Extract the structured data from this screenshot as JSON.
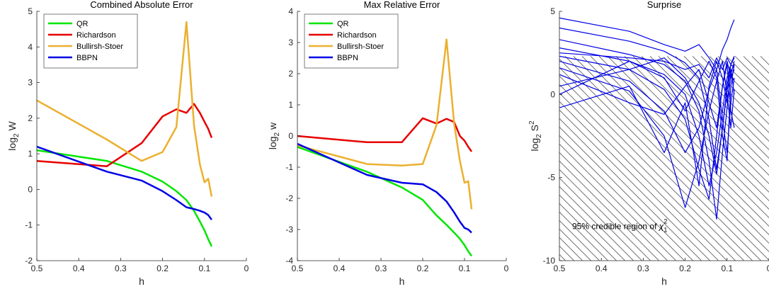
{
  "chart_data": [
    {
      "type": "line",
      "title": "Combined Absolute Error",
      "xlabel": "h",
      "ylabel": "log",
      "ylabel_sub": "2",
      "ylabel_tail": " W",
      "xlim": [
        0,
        0.5
      ],
      "ylim": [
        -2,
        5
      ],
      "x_reversed": true,
      "xticks": [
        0.5,
        0.4,
        0.3,
        0.2,
        0.1,
        0
      ],
      "xtick_labels": [
        "0.5",
        "0.4",
        "0.3",
        "0.2",
        "0.1",
        "0"
      ],
      "yticks": [
        -2,
        -1,
        0,
        1,
        2,
        3,
        4,
        5
      ],
      "ytick_labels": [
        "-2",
        "-1",
        "0",
        "1",
        "2",
        "3",
        "4",
        "5"
      ],
      "legend_position": "top-left",
      "series": [
        {
          "name": "QR",
          "color": "#00e600",
          "x": [
            0.5,
            0.333,
            0.25,
            0.2,
            0.167,
            0.143,
            0.125,
            0.111,
            0.1,
            0.091,
            0.083
          ],
          "y": [
            1.1,
            0.8,
            0.5,
            0.22,
            -0.05,
            -0.3,
            -0.6,
            -0.9,
            -1.15,
            -1.4,
            -1.6
          ]
        },
        {
          "name": "Richardson",
          "color": "#e60000",
          "x": [
            0.5,
            0.333,
            0.25,
            0.2,
            0.167,
            0.143,
            0.125,
            0.111,
            0.1,
            0.091,
            0.083
          ],
          "y": [
            0.8,
            0.65,
            1.3,
            2.05,
            2.25,
            2.15,
            2.4,
            2.15,
            1.9,
            1.7,
            1.45
          ]
        },
        {
          "name": "Bullirsh-Stoer",
          "color": "#ebb030",
          "x": [
            0.5,
            0.333,
            0.25,
            0.2,
            0.167,
            0.143,
            0.125,
            0.111,
            0.1,
            0.091,
            0.083
          ],
          "y": [
            2.5,
            1.4,
            0.8,
            1.05,
            1.75,
            4.7,
            1.8,
            0.7,
            0.2,
            0.3,
            -0.2
          ]
        },
        {
          "name": "BBPN",
          "color": "#0000e6",
          "x": [
            0.5,
            0.333,
            0.25,
            0.2,
            0.167,
            0.143,
            0.125,
            0.111,
            0.1,
            0.091,
            0.083
          ],
          "y": [
            1.2,
            0.5,
            0.25,
            -0.05,
            -0.3,
            -0.5,
            -0.55,
            -0.6,
            -0.65,
            -0.72,
            -0.85
          ]
        }
      ]
    },
    {
      "type": "line",
      "title": "Max Relative Error",
      "xlabel": "h",
      "ylabel": "log",
      "ylabel_sub": "2",
      "ylabel_tail": " w",
      "xlim": [
        0,
        0.5
      ],
      "ylim": [
        -4,
        4
      ],
      "x_reversed": true,
      "xticks": [
        0.5,
        0.4,
        0.3,
        0.2,
        0.1,
        0
      ],
      "xtick_labels": [
        "0.5",
        "0.4",
        "0.3",
        "0.2",
        "0.1",
        "0"
      ],
      "yticks": [
        -4,
        -3,
        -2,
        -1,
        0,
        1,
        2,
        3,
        4
      ],
      "ytick_labels": [
        "-4",
        "-3",
        "-2",
        "-1",
        "0",
        "1",
        "2",
        "3",
        "4"
      ],
      "legend_position": "top-left",
      "series": [
        {
          "name": "QR",
          "color": "#00e600",
          "x": [
            0.5,
            0.333,
            0.25,
            0.2,
            0.167,
            0.143,
            0.125,
            0.111,
            0.1,
            0.091,
            0.083
          ],
          "y": [
            -0.35,
            -1.15,
            -1.65,
            -2.05,
            -2.55,
            -2.85,
            -3.1,
            -3.3,
            -3.5,
            -3.7,
            -3.85
          ]
        },
        {
          "name": "Richardson",
          "color": "#e60000",
          "x": [
            0.5,
            0.333,
            0.25,
            0.2,
            0.167,
            0.143,
            0.125,
            0.111,
            0.1,
            0.091,
            0.083
          ],
          "y": [
            0.0,
            -0.2,
            -0.2,
            0.57,
            0.4,
            0.55,
            0.45,
            0.0,
            -0.15,
            -0.35,
            -0.5
          ]
        },
        {
          "name": "Bullirsh-Stoer",
          "color": "#ebb030",
          "x": [
            0.5,
            0.333,
            0.25,
            0.2,
            0.167,
            0.143,
            0.125,
            0.111,
            0.1,
            0.091,
            0.083
          ],
          "y": [
            -0.3,
            -0.9,
            -0.95,
            -0.9,
            0.35,
            3.1,
            0.4,
            -0.8,
            -1.5,
            -1.45,
            -2.35
          ]
        },
        {
          "name": "BBPN",
          "color": "#0000e6",
          "x": [
            0.5,
            0.333,
            0.25,
            0.2,
            0.167,
            0.143,
            0.125,
            0.111,
            0.1,
            0.091,
            0.083
          ],
          "y": [
            -0.25,
            -1.25,
            -1.5,
            -1.55,
            -1.8,
            -2.1,
            -2.45,
            -2.75,
            -2.95,
            -3.0,
            -3.1
          ]
        }
      ]
    },
    {
      "type": "line",
      "title": "Surprise",
      "xlabel": "h",
      "ylabel": "log",
      "ylabel_sub": "2",
      "ylabel_tail": " S",
      "ylabel_sup": "2",
      "xlim": [
        0,
        0.5
      ],
      "ylim": [
        -10,
        5
      ],
      "x_reversed": true,
      "xticks": [
        0.5,
        0.4,
        0.3,
        0.2,
        0.1,
        0
      ],
      "xtick_labels": [
        "0.5",
        "0.4",
        "0.3",
        "0.2",
        "0.1",
        "0"
      ],
      "yticks": [
        -10,
        -5,
        0,
        5
      ],
      "ytick_labels": [
        "-10",
        "-5",
        "0",
        "5"
      ],
      "line_color": "#0000e6",
      "hatch_color": "#3a3a3a",
      "credible_region": {
        "upper": 2.3,
        "lower": -10
      },
      "annotation": {
        "text": "95% credible region of ",
        "symbol": "χ",
        "sub": "1",
        "sup": "2"
      },
      "x": [
        0.5,
        0.333,
        0.25,
        0.2,
        0.167,
        0.143,
        0.125,
        0.111,
        0.1,
        0.091,
        0.083
      ],
      "series": [
        {
          "y": [
            4.6,
            3.8,
            3.0,
            2.6,
            3.0,
            2.2,
            1.5,
            2.7,
            3.3,
            4.0,
            4.5
          ]
        },
        {
          "y": [
            4.0,
            3.2,
            2.6,
            1.9,
            1.0,
            -1.5,
            -4.5,
            -2.0,
            0.5,
            1.8,
            2.2
          ]
        },
        {
          "y": [
            3.3,
            2.4,
            1.8,
            0.8,
            -1.0,
            -4.0,
            -7.5,
            -3.5,
            -0.8,
            1.2,
            2.0
          ]
        },
        {
          "y": [
            2.8,
            2.0,
            1.2,
            0.0,
            -2.5,
            -5.5,
            -3.5,
            -1.0,
            1.0,
            1.8,
            2.3
          ]
        },
        {
          "y": [
            2.3,
            1.5,
            0.3,
            -1.5,
            -4.5,
            -6.3,
            -2.5,
            0.5,
            2.0,
            1.0,
            1.5
          ]
        },
        {
          "y": [
            2.0,
            0.8,
            -1.0,
            -3.5,
            -2.0,
            0.3,
            1.5,
            -1.5,
            -3.5,
            -0.5,
            1.0
          ]
        },
        {
          "y": [
            1.6,
            0.2,
            -2.5,
            -6.8,
            -4.0,
            -1.0,
            0.8,
            2.0,
            0.0,
            -2.0,
            0.3
          ]
        },
        {
          "y": [
            1.2,
            -0.5,
            -1.2,
            0.5,
            1.5,
            -0.5,
            -2.0,
            0.5,
            1.8,
            -1.0,
            -2.0
          ]
        },
        {
          "y": [
            0.5,
            1.5,
            2.2,
            1.0,
            -0.5,
            -2.5,
            -4.8,
            -2.0,
            0.2,
            1.5,
            0.0
          ]
        },
        {
          "y": [
            0.0,
            2.0,
            1.0,
            -1.0,
            0.8,
            2.0,
            1.0,
            -2.5,
            -4.0,
            0.5,
            1.8
          ]
        },
        {
          "y": [
            -0.8,
            0.5,
            -3.5,
            -0.5,
            -5.5,
            0.5,
            2.0,
            1.0,
            -0.5,
            1.2,
            0.8
          ]
        },
        {
          "y": [
            2.5,
            2.2,
            2.0,
            1.5,
            1.8,
            1.0,
            2.2,
            1.5,
            2.2,
            1.8,
            1.6
          ]
        }
      ]
    }
  ]
}
